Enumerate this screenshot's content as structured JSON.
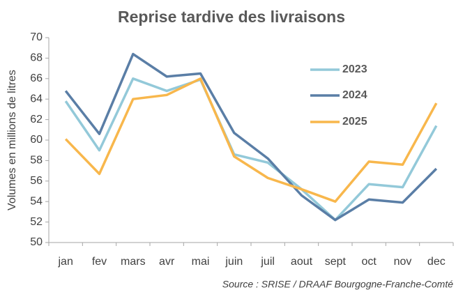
{
  "chart_data": {
    "type": "line",
    "title": "Reprise tardive des livraisons",
    "y_label": "Volumes en millions de litres",
    "source": "Source : SRISE / DRAAF Bourgogne-Franche-Comté",
    "categories": [
      "jan",
      "fev",
      "mars",
      "avr",
      "mai",
      "juin",
      "juil",
      "aout",
      "sept",
      "oct",
      "nov",
      "dec"
    ],
    "series": [
      {
        "name": "2023",
        "color": "#93c9d9",
        "values": [
          63.8,
          59.0,
          66.0,
          64.8,
          65.9,
          58.6,
          57.8,
          55.2,
          52.2,
          55.7,
          55.4,
          61.4
        ]
      },
      {
        "name": "2024",
        "color": "#5a7ea6",
        "values": [
          64.8,
          60.6,
          68.4,
          66.2,
          66.5,
          60.7,
          58.2,
          54.6,
          52.2,
          54.2,
          53.9,
          57.2
        ]
      },
      {
        "name": "2025",
        "color": "#f8b74c",
        "values": [
          60.1,
          56.7,
          64.0,
          64.4,
          66.0,
          58.4,
          56.3,
          55.2,
          54.0,
          57.9,
          57.6,
          63.6
        ]
      }
    ],
    "ylim": [
      50,
      70
    ],
    "yticks": [
      50,
      52,
      54,
      56,
      58,
      60,
      62,
      64,
      66,
      68,
      70
    ],
    "legend": "right",
    "grid": false
  }
}
